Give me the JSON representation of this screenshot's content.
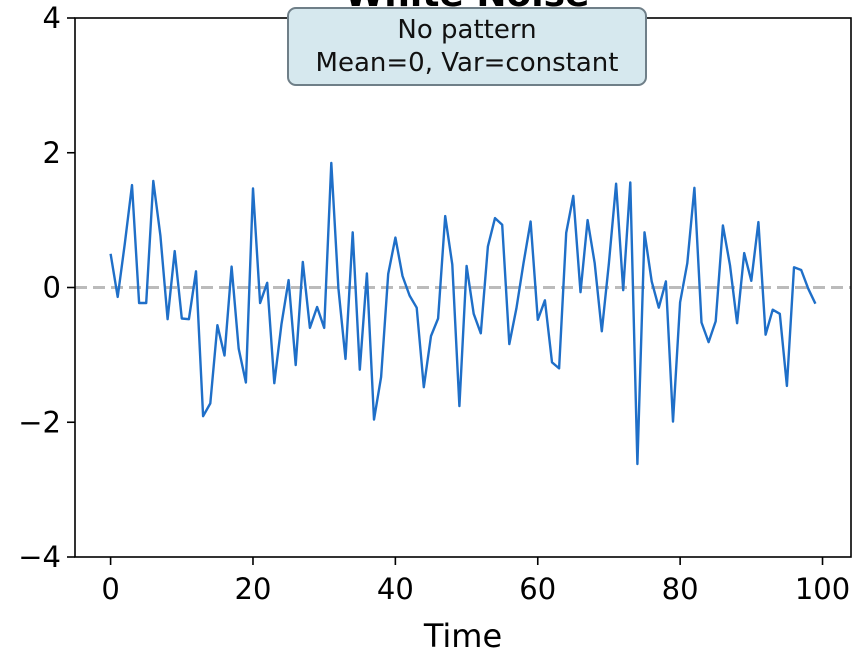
{
  "chart_data": {
    "type": "line",
    "title": "White Noise",
    "xlabel": "Time",
    "ylabel": "",
    "xlim": [
      -5,
      104
    ],
    "ylim": [
      -4,
      4
    ],
    "x_ticks": [
      0,
      20,
      40,
      60,
      80,
      100
    ],
    "x_tick_labels": [
      "0",
      "20",
      "40",
      "60",
      "80",
      "100"
    ],
    "y_ticks": [
      -4,
      -2,
      0,
      2,
      4
    ],
    "y_tick_labels": [
      "−4",
      "−2",
      "0",
      "2",
      "4"
    ],
    "grid": false,
    "reference_line": {
      "y": 0,
      "style": "dashed",
      "color": "#bbbbbb"
    },
    "annotation": {
      "lines": [
        "No pattern",
        "Mean=0, Var=constant"
      ]
    },
    "series": [
      {
        "color": "#1f6fc8",
        "x": [
          0,
          1,
          2,
          3,
          4,
          5,
          6,
          7,
          8,
          9,
          10,
          11,
          12,
          13,
          14,
          15,
          16,
          17,
          18,
          19,
          20,
          21,
          22,
          23,
          24,
          25,
          26,
          27,
          28,
          29,
          30,
          31,
          32,
          33,
          34,
          35,
          36,
          37,
          38,
          39,
          40,
          41,
          42,
          43,
          44,
          45,
          46,
          47,
          48,
          49,
          50,
          51,
          52,
          53,
          54,
          55,
          56,
          57,
          58,
          59,
          60,
          61,
          62,
          63,
          64,
          65,
          66,
          67,
          68,
          69,
          70,
          71,
          72,
          73,
          74,
          75,
          76,
          77,
          78,
          79,
          80,
          81,
          82,
          83,
          84,
          85,
          86,
          87,
          88,
          89,
          90,
          91,
          92,
          93,
          94,
          95,
          96,
          97,
          98,
          99
        ],
        "y": [
          0.5,
          -0.14,
          0.65,
          1.52,
          -0.23,
          -0.23,
          1.58,
          0.77,
          -0.47,
          0.54,
          -0.46,
          -0.47,
          0.24,
          -1.91,
          -1.72,
          -0.56,
          -1.01,
          0.31,
          -0.91,
          -1.41,
          1.47,
          -0.23,
          0.07,
          -1.42,
          -0.54,
          0.11,
          -1.15,
          0.38,
          -0.6,
          -0.29,
          -0.6,
          1.85,
          -0.01,
          -1.06,
          0.82,
          -1.22,
          0.21,
          -1.96,
          -1.33,
          0.2,
          0.74,
          0.17,
          -0.12,
          -0.3,
          -1.48,
          -0.72,
          -0.46,
          1.06,
          0.34,
          -1.76,
          0.32,
          -0.39,
          -0.68,
          0.61,
          1.03,
          0.93,
          -0.84,
          -0.31,
          0.36,
          0.98,
          -0.48,
          -0.19,
          -1.11,
          -1.2,
          0.81,
          1.36,
          -0.07,
          1.0,
          0.36,
          -0.65,
          0.36,
          1.54,
          -0.04,
          1.56,
          -2.62,
          0.82,
          0.09,
          -0.3,
          0.09,
          -1.99,
          -0.22,
          0.36,
          1.48,
          -0.52,
          -0.81,
          -0.5,
          0.92,
          0.33,
          -0.53,
          0.51,
          0.1,
          0.97,
          -0.7,
          -0.33,
          -0.39,
          -1.46,
          0.3,
          0.26,
          -0.02,
          -0.24
        ]
      }
    ]
  }
}
